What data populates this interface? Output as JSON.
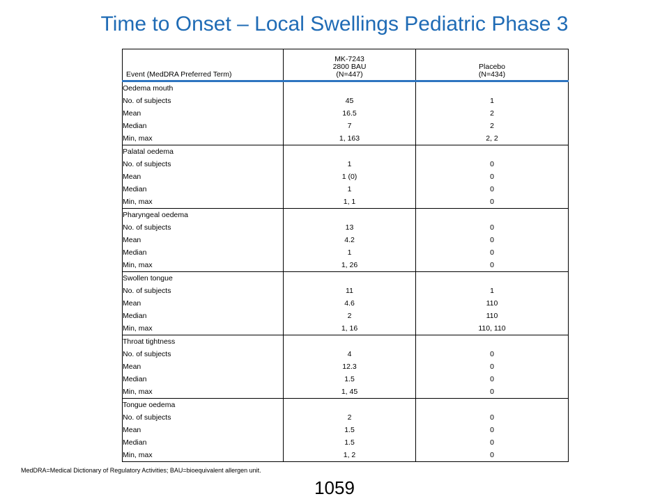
{
  "title": "Time to Onset – Local Swellings Pediatric Phase 3",
  "table": {
    "headers": {
      "col1": "Event (MedDRA Preferred Term)",
      "col2_line1": "MK-7243",
      "col2_line2": "2800 BAU",
      "col2_line3": "(N=447)",
      "col3_line1": "Placebo",
      "col3_line2": "(N=434)"
    },
    "stat_labels": [
      "No. of subjects",
      "Mean",
      "Median",
      "Min, max"
    ],
    "events": [
      {
        "name": "Oedema mouth",
        "mk": [
          "45",
          "16.5",
          "7",
          "1, 163"
        ],
        "placebo": [
          "1",
          "2",
          "2",
          "2, 2"
        ]
      },
      {
        "name": "Palatal oedema",
        "mk": [
          "1",
          "1 (0)",
          "1",
          "1, 1"
        ],
        "placebo": [
          "0",
          "0",
          "0",
          "0"
        ]
      },
      {
        "name": "Pharyngeal oedema",
        "mk": [
          "13",
          "4.2",
          "1",
          "1, 26"
        ],
        "placebo": [
          "0",
          "0",
          "0",
          "0"
        ]
      },
      {
        "name": "Swollen tongue",
        "mk": [
          "11",
          "4.6",
          "2",
          "1, 16"
        ],
        "placebo": [
          "1",
          "110",
          "110",
          "110, 110"
        ]
      },
      {
        "name": "Throat tightness",
        "mk": [
          "4",
          "12.3",
          "1.5",
          "1, 45"
        ],
        "placebo": [
          "0",
          "0",
          "0",
          "0"
        ]
      },
      {
        "name": "Tongue oedema",
        "mk": [
          "2",
          "1.5",
          "1.5",
          "1, 2"
        ],
        "placebo": [
          "0",
          "0",
          "0",
          "0"
        ]
      }
    ]
  },
  "footnote": "MedDRA=Medical Dictionary of Regulatory Activities; BAU=bioequivalent allergen unit.",
  "page_number": "1059",
  "colors": {
    "title": "#1F6BB5",
    "header_rule": "#2E75C0"
  }
}
